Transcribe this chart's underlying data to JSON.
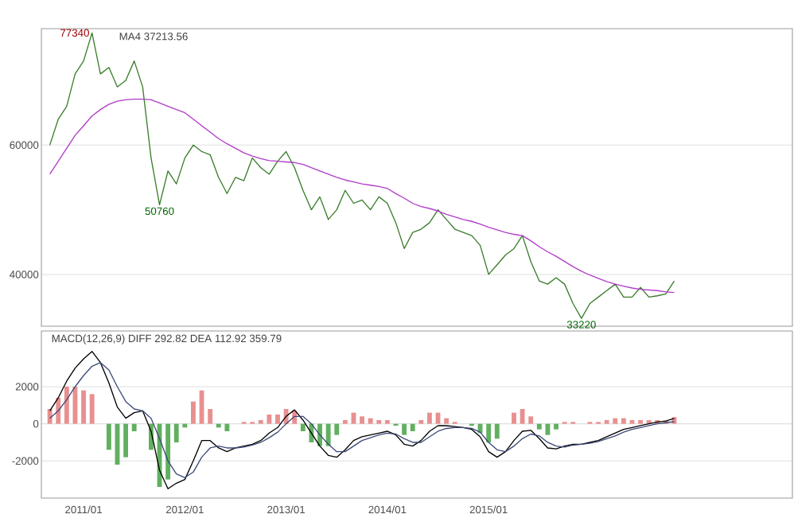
{
  "chart_data": [
    {
      "type": "line",
      "x": [
        "2010-09",
        "2010-10",
        "2010-11",
        "2010-12",
        "2011-01",
        "2011-02",
        "2011-03",
        "2011-04",
        "2011-05",
        "2011-06",
        "2011-07",
        "2011-08",
        "2011-09",
        "2011-10",
        "2011-11",
        "2011-12",
        "2012-01",
        "2012-02",
        "2012-03",
        "2012-04",
        "2012-05",
        "2012-06",
        "2012-07",
        "2012-08",
        "2012-09",
        "2012-10",
        "2012-11",
        "2012-12",
        "2013-01",
        "2013-02",
        "2013-03",
        "2013-04",
        "2013-05",
        "2013-06",
        "2013-07",
        "2013-08",
        "2013-09",
        "2013-10",
        "2013-11",
        "2013-12",
        "2014-01",
        "2014-02",
        "2014-03",
        "2014-04",
        "2014-05",
        "2014-06",
        "2014-07",
        "2014-08",
        "2014-09",
        "2014-10",
        "2014-11",
        "2014-12",
        "2015-01",
        "2015-02",
        "2015-03",
        "2015-04",
        "2015-05",
        "2015-06",
        "2015-07",
        "2015-08",
        "2015-09",
        "2015-10",
        "2015-11",
        "2015-12",
        "2016-01",
        "2016-02",
        "2016-03",
        "2016-04",
        "2016-05",
        "2016-06",
        "2016-07",
        "2016-08",
        "2016-09",
        "2016-10",
        "2016-11"
      ],
      "series": [
        {
          "color": "#3a7d2a",
          "values": [
            60000,
            64000,
            66000,
            71000,
            73000,
            77340,
            71000,
            72000,
            69000,
            70000,
            73000,
            69000,
            58000,
            50760,
            56000,
            54000,
            58000,
            60000,
            59000,
            58500,
            55000,
            52500,
            55000,
            54500,
            58000,
            56500,
            55500,
            57500,
            59000,
            56500,
            53000,
            50000,
            52000,
            48500,
            50000,
            53000,
            51000,
            51500,
            50000,
            52000,
            51000,
            48000,
            44000,
            46500,
            47000,
            48000,
            50000,
            48500,
            47000,
            46500,
            46000,
            44500,
            40000,
            41500,
            43000,
            44000,
            46000,
            42000,
            39000,
            38500,
            39500,
            38500,
            35500,
            33220,
            35500,
            36500,
            37500,
            38500,
            36500,
            36500,
            38000,
            36500,
            36700,
            37000,
            39000
          ]
        },
        {
          "color": "#b03cc8",
          "values": [
            55500,
            57500,
            59500,
            61500,
            63000,
            64500,
            65500,
            66300,
            66800,
            67000,
            67100,
            67100,
            67000,
            66500,
            66000,
            65500,
            65000,
            64000,
            63000,
            62000,
            61000,
            60200,
            59500,
            58800,
            58300,
            57900,
            57600,
            57500,
            57400,
            57300,
            57000,
            56500,
            56000,
            55500,
            55000,
            54600,
            54300,
            54000,
            53800,
            53600,
            53300,
            52500,
            51800,
            51000,
            50500,
            50200,
            49800,
            49300,
            48900,
            48500,
            48200,
            47800,
            47300,
            46900,
            46500,
            46200,
            46000,
            45200,
            44300,
            43500,
            42800,
            42000,
            41200,
            40500,
            39900,
            39400,
            38900,
            38500,
            38200,
            37900,
            37700,
            37600,
            37500,
            37300,
            37213.56
          ]
        }
      ],
      "xlim": [
        "2010-08",
        "2018-01"
      ],
      "ylim": [
        32000,
        78000
      ],
      "yticks": [
        40000,
        60000
      ],
      "tick_labels": "y",
      "grid": "y",
      "annotations": [
        "MA4  37213.56",
        {
          "text": "77340",
          "x": "2011-02",
          "y": 77340
        },
        {
          "text": "50760",
          "x": "2011-10",
          "y": 50760
        },
        {
          "text": "33220",
          "x": "2015-12",
          "y": 33220
        }
      ]
    },
    {
      "type": "line",
      "x": [
        "2010-09",
        "2010-10",
        "2010-11",
        "2010-12",
        "2011-01",
        "2011-02",
        "2011-03",
        "2011-04",
        "2011-05",
        "2011-06",
        "2011-07",
        "2011-08",
        "2011-09",
        "2011-10",
        "2011-11",
        "2011-12",
        "2012-01",
        "2012-02",
        "2012-03",
        "2012-04",
        "2012-05",
        "2012-06",
        "2012-07",
        "2012-08",
        "2012-09",
        "2012-10",
        "2012-11",
        "2012-12",
        "2013-01",
        "2013-02",
        "2013-03",
        "2013-04",
        "2013-05",
        "2013-06",
        "2013-07",
        "2013-08",
        "2013-09",
        "2013-10",
        "2013-11",
        "2013-12",
        "2014-01",
        "2014-02",
        "2014-03",
        "2014-04",
        "2014-05",
        "2014-06",
        "2014-07",
        "2014-08",
        "2014-09",
        "2014-10",
        "2014-11",
        "2014-12",
        "2015-01",
        "2015-02",
        "2015-03",
        "2015-04",
        "2015-05",
        "2015-06",
        "2015-07",
        "2015-08",
        "2015-09",
        "2015-10",
        "2015-11",
        "2015-12",
        "2016-01",
        "2016-02",
        "2016-03",
        "2016-04",
        "2016-05",
        "2016-06",
        "2016-07",
        "2016-08",
        "2016-09",
        "2016-10",
        "2016-11"
      ],
      "series": [
        {
          "type": "bar",
          "values": [
            800,
            1400,
            2000,
            2000,
            1800,
            1600,
            0,
            -1400,
            -2200,
            -1800,
            -400,
            0,
            -1400,
            -3400,
            -3000,
            -1000,
            -200,
            1200,
            1800,
            800,
            -200,
            -400,
            0,
            100,
            100,
            200,
            500,
            500,
            800,
            700,
            -400,
            -1000,
            -1200,
            -1200,
            -600,
            200,
            600,
            400,
            300,
            200,
            200,
            -100,
            -600,
            -400,
            200,
            600,
            600,
            300,
            100,
            0,
            -100,
            -500,
            -1000,
            -800,
            0,
            600,
            800,
            400,
            -300,
            -600,
            -300,
            100,
            100,
            0,
            100,
            100,
            200,
            300,
            300,
            200,
            200,
            200,
            200,
            180,
            359.79
          ],
          "colors": [
            "#e89090",
            "#e89090",
            "#e89090",
            "#e89090",
            "#e89090",
            "#e89090",
            "#e89090",
            "#60b060",
            "#60b060",
            "#60b060",
            "#60b060",
            "#e89090",
            "#60b060",
            "#60b060",
            "#60b060",
            "#60b060",
            "#60b060",
            "#e89090",
            "#e89090",
            "#e89090",
            "#60b060",
            "#60b060",
            "#e89090",
            "#e89090",
            "#e89090",
            "#e89090",
            "#e89090",
            "#e89090",
            "#e89090",
            "#e89090",
            "#60b060",
            "#60b060",
            "#60b060",
            "#60b060",
            "#60b060",
            "#e89090",
            "#e89090",
            "#e89090",
            "#e89090",
            "#e89090",
            "#e89090",
            "#60b060",
            "#60b060",
            "#60b060",
            "#e89090",
            "#e89090",
            "#e89090",
            "#e89090",
            "#e89090",
            "#e89090",
            "#60b060",
            "#60b060",
            "#60b060",
            "#60b060",
            "#e89090",
            "#e89090",
            "#e89090",
            "#e89090",
            "#60b060",
            "#60b060",
            "#60b060",
            "#e89090",
            "#e89090",
            "#e89090",
            "#e89090",
            "#e89090",
            "#e89090",
            "#e89090",
            "#e89090",
            "#e89090",
            "#e89090",
            "#e89090",
            "#e89090",
            "#e89090",
            "#e89090"
          ]
        },
        {
          "color": "#000000",
          "values": [
            700,
            1400,
            2300,
            3000,
            3500,
            3900,
            3300,
            2200,
            900,
            300,
            600,
            700,
            -400,
            -2500,
            -3500,
            -3200,
            -3000,
            -2000,
            -900,
            -900,
            -1300,
            -1500,
            -1300,
            -1200,
            -1100,
            -900,
            -500,
            -200,
            400,
            750,
            200,
            -500,
            -1200,
            -1700,
            -1800,
            -1400,
            -900,
            -700,
            -600,
            -500,
            -400,
            -600,
            -1100,
            -1200,
            -900,
            -400,
            -100,
            -100,
            -150,
            -200,
            -300,
            -700,
            -1500,
            -1800,
            -1500,
            -900,
            -400,
            -350,
            -800,
            -1300,
            -1350,
            -1200,
            -1100,
            -1100,
            -1000,
            -900,
            -700,
            -500,
            -300,
            -200,
            -100,
            0,
            100,
            150,
            292.82
          ]
        },
        {
          "color": "#3c4a78",
          "values": [
            300,
            700,
            1300,
            2000,
            2600,
            3100,
            3300,
            2900,
            2000,
            1200,
            800,
            700,
            300,
            -800,
            -2000,
            -2700,
            -2900,
            -2600,
            -1800,
            -1300,
            -1200,
            -1300,
            -1300,
            -1250,
            -1150,
            -1000,
            -750,
            -450,
            0,
            400,
            400,
            0,
            -600,
            -1100,
            -1500,
            -1500,
            -1200,
            -900,
            -750,
            -600,
            -500,
            -550,
            -800,
            -1000,
            -1000,
            -700,
            -400,
            -250,
            -200,
            -200,
            -250,
            -450,
            -1000,
            -1400,
            -1500,
            -1200,
            -800,
            -550,
            -650,
            -1000,
            -1200,
            -1250,
            -1150,
            -1100,
            -1050,
            -950,
            -800,
            -650,
            -450,
            -300,
            -200,
            -100,
            0,
            60,
            112.92
          ]
        }
      ],
      "xlim": [
        "2010-08",
        "2018-01"
      ],
      "xticks": [
        {
          "value": "2011-01",
          "label": "2011/01"
        },
        {
          "value": "2012-01",
          "label": "2012/01"
        },
        {
          "value": "2013-01",
          "label": "2013/01"
        },
        {
          "value": "2014-01",
          "label": "2014/01"
        },
        {
          "value": "2015-01",
          "label": "2015/01"
        }
      ],
      "ylim": [
        -4000,
        5000
      ],
      "yticks": [
        -2000,
        0,
        2000
      ],
      "grid": "y",
      "annotations": [
        "MACD(12,26,9)  DIFF  292.82  DEA  112.92  359.79"
      ]
    }
  ]
}
